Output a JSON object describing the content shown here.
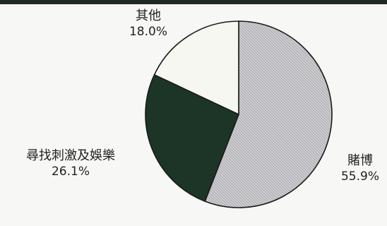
{
  "chart_data": {
    "type": "pie",
    "slices": [
      {
        "label": "賭博",
        "value": 55.9,
        "display": "55.9%",
        "color": "#c9c9cc"
      },
      {
        "label": "尋找刺激及娛樂",
        "value": 26.1,
        "display": "26.1%",
        "color": "#1c3526"
      },
      {
        "label": "其他",
        "value": 18.0,
        "display": "18.0%",
        "color": "#f7f7f2"
      }
    ],
    "start_angle_deg": 0,
    "direction": "clockwise"
  }
}
